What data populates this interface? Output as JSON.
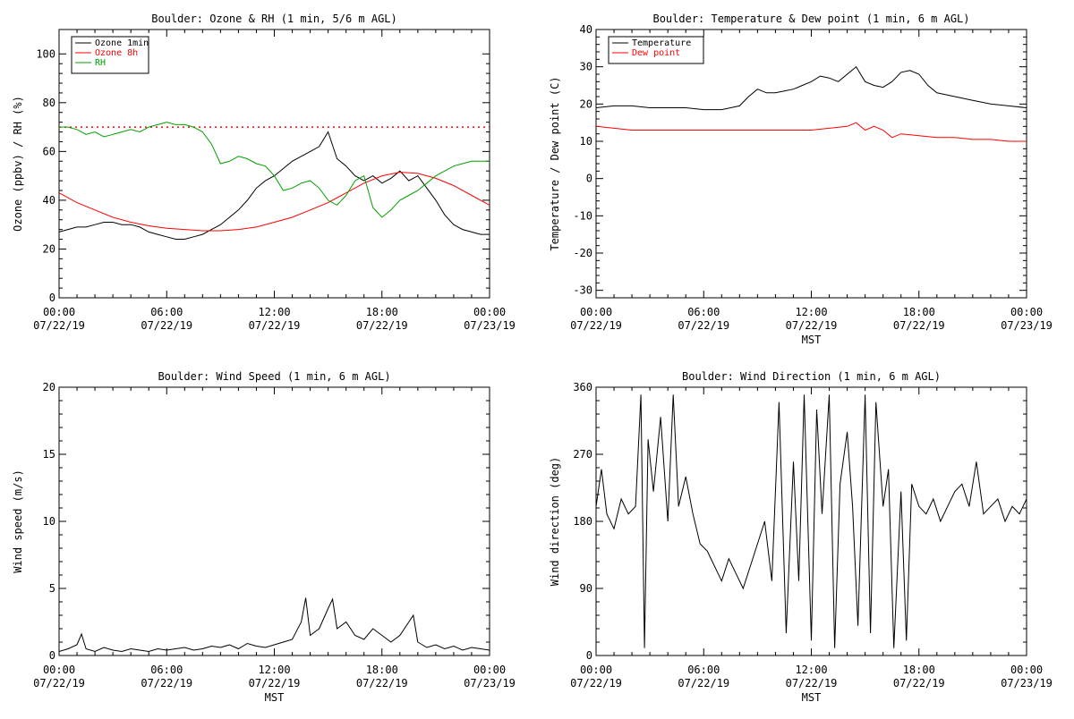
{
  "chart_data": [
    {
      "type": "line",
      "title": "Boulder: Ozone & RH (1 min, 5/6 m AGL)",
      "xlabel": "",
      "ylabel": "Ozone (ppbv) / RH (%)",
      "x_range": [
        0,
        24
      ],
      "ylim": [
        0,
        110
      ],
      "y_ticks": [
        0,
        20,
        40,
        60,
        80,
        100
      ],
      "x_tick_labels": [
        {
          "x": 0,
          "time": "00:00",
          "date": "07/22/19"
        },
        {
          "x": 6,
          "time": "06:00",
          "date": "07/22/19"
        },
        {
          "x": 12,
          "time": "12:00",
          "date": "07/22/19"
        },
        {
          "x": 18,
          "time": "18:00",
          "date": "07/22/19"
        },
        {
          "x": 24,
          "time": "00:00",
          "date": "07/23/19"
        }
      ],
      "grid": false,
      "legend": "top-left",
      "reference_line": {
        "y": 70,
        "color": "#ff0000",
        "style": "dotted"
      },
      "series": [
        {
          "name": "Ozone 1min",
          "color": "#000000",
          "x": [
            0,
            0.5,
            1,
            1.5,
            2,
            2.5,
            3,
            3.5,
            4,
            4.5,
            5,
            5.5,
            6,
            6.5,
            7,
            7.5,
            8,
            8.5,
            9,
            9.5,
            10,
            10.5,
            11,
            11.5,
            12,
            12.5,
            13,
            13.5,
            14,
            14.5,
            15,
            15.5,
            16,
            16.5,
            17,
            17.5,
            18,
            18.5,
            19,
            19.5,
            20,
            20.5,
            21,
            21.5,
            22,
            22.5,
            23,
            23.5,
            24
          ],
          "y": [
            27,
            28,
            29,
            29,
            30,
            31,
            31,
            30,
            30,
            29,
            27,
            26,
            25,
            24,
            24,
            25,
            26,
            28,
            30,
            33,
            36,
            40,
            45,
            48,
            50,
            53,
            56,
            58,
            60,
            62,
            68,
            57,
            54,
            50,
            48,
            50,
            47,
            49,
            52,
            48,
            50,
            45,
            40,
            34,
            30,
            28,
            27,
            26,
            26
          ]
        },
        {
          "name": "Ozone 8h",
          "color": "#ff0000",
          "x": [
            0,
            1,
            2,
            3,
            4,
            5,
            6,
            7,
            8,
            9,
            10,
            11,
            12,
            13,
            14,
            15,
            16,
            17,
            18,
            19,
            20,
            21,
            22,
            23,
            24
          ],
          "y": [
            43,
            39,
            36,
            33,
            31,
            29.5,
            28.5,
            28,
            27.5,
            27.5,
            28,
            29,
            31,
            33,
            36,
            39,
            43,
            47,
            50,
            51.5,
            51,
            49,
            46,
            42,
            38
          ]
        },
        {
          "name": "RH",
          "color": "#00a000",
          "x": [
            0,
            0.5,
            1,
            1.5,
            2,
            2.5,
            3,
            3.5,
            4,
            4.5,
            5,
            5.5,
            6,
            6.5,
            7,
            7.5,
            8,
            8.5,
            9,
            9.5,
            10,
            10.5,
            11,
            11.5,
            12,
            12.5,
            13,
            13.5,
            14,
            14.5,
            15,
            15.5,
            16,
            16.5,
            17,
            17.5,
            18,
            18.5,
            19,
            19.5,
            20,
            20.5,
            21,
            21.5,
            22,
            22.5,
            23,
            23.5,
            24
          ],
          "y": [
            70,
            70,
            69,
            67,
            68,
            66,
            67,
            68,
            69,
            68,
            70,
            71,
            72,
            71,
            71,
            70,
            68,
            63,
            55,
            56,
            58,
            57,
            55,
            54,
            50,
            44,
            45,
            47,
            48,
            45,
            40,
            38,
            42,
            48,
            50,
            37,
            33,
            36,
            40,
            42,
            44,
            47,
            50,
            52,
            54,
            55,
            56,
            56,
            56
          ]
        }
      ]
    },
    {
      "type": "line",
      "title": "Boulder: Temperature & Dew point (1 min, 6 m AGL)",
      "xlabel": "MST",
      "ylabel": "Temperature / Dew point (C)",
      "x_range": [
        0,
        24
      ],
      "ylim": [
        -32,
        40
      ],
      "y_ticks": [
        -30,
        -20,
        -10,
        0,
        10,
        20,
        30,
        40
      ],
      "x_tick_labels": [
        {
          "x": 0,
          "time": "00:00",
          "date": "07/22/19"
        },
        {
          "x": 6,
          "time": "06:00",
          "date": "07/22/19"
        },
        {
          "x": 12,
          "time": "12:00",
          "date": "07/22/19"
        },
        {
          "x": 18,
          "time": "18:00",
          "date": "07/22/19"
        },
        {
          "x": 24,
          "time": "00:00",
          "date": "07/23/19"
        }
      ],
      "grid": false,
      "legend": "top-left",
      "series": [
        {
          "name": "Temperature",
          "color": "#000000",
          "x": [
            0,
            1,
            2,
            3,
            4,
            5,
            6,
            7,
            8,
            8.5,
            9,
            9.5,
            10,
            10.5,
            11,
            11.5,
            12,
            12.5,
            13,
            13.5,
            14,
            14.5,
            15,
            15.5,
            16,
            16.5,
            17,
            17.5,
            18,
            18.5,
            19,
            20,
            21,
            22,
            23,
            24
          ],
          "y": [
            19,
            19.5,
            19.5,
            19,
            19,
            19,
            18.5,
            18.5,
            19.5,
            22,
            24,
            23,
            23,
            23.5,
            24,
            25,
            26,
            27.5,
            27,
            26,
            28,
            30,
            26,
            25,
            24.5,
            26,
            28.5,
            29,
            28,
            25,
            23,
            22,
            21,
            20,
            19.5,
            19
          ]
        },
        {
          "name": "Dew point",
          "color": "#ff0000",
          "x": [
            0,
            1,
            2,
            3,
            4,
            5,
            6,
            7,
            8,
            9,
            10,
            11,
            12,
            13,
            14,
            14.5,
            15,
            15.5,
            16,
            16.5,
            17,
            18,
            19,
            20,
            21,
            22,
            23,
            24
          ],
          "y": [
            14,
            13.5,
            13,
            13,
            13,
            13,
            13,
            13,
            13,
            13,
            13,
            13,
            13,
            13.5,
            14,
            15,
            13,
            14,
            13,
            11,
            12,
            11.5,
            11,
            11,
            10.5,
            10.5,
            10,
            10
          ]
        }
      ]
    },
    {
      "type": "line",
      "title": "Boulder: Wind Speed (1 min, 6 m AGL)",
      "xlabel": "MST",
      "ylabel": "Wind speed (m/s)",
      "x_range": [
        0,
        24
      ],
      "ylim": [
        0,
        20
      ],
      "y_ticks": [
        0,
        5,
        10,
        15,
        20
      ],
      "x_tick_labels": [
        {
          "x": 0,
          "time": "00:00",
          "date": "07/22/19"
        },
        {
          "x": 6,
          "time": "06:00",
          "date": "07/22/19"
        },
        {
          "x": 12,
          "time": "12:00",
          "date": "07/22/19"
        },
        {
          "x": 18,
          "time": "18:00",
          "date": "07/22/19"
        },
        {
          "x": 24,
          "time": "00:00",
          "date": "07/23/19"
        }
      ],
      "grid": false,
      "series": [
        {
          "color": "#000000",
          "x": [
            0,
            0.5,
            1,
            1.25,
            1.5,
            2,
            2.5,
            3,
            3.5,
            4,
            4.5,
            5,
            5.5,
            6,
            6.5,
            7,
            7.5,
            8,
            8.5,
            9,
            9.5,
            10,
            10.5,
            11,
            11.5,
            12,
            12.5,
            13,
            13.5,
            13.75,
            14,
            14.5,
            15,
            15.25,
            15.5,
            16,
            16.5,
            17,
            17.5,
            18,
            18.5,
            19,
            19.5,
            19.75,
            20,
            20.5,
            21,
            21.5,
            22,
            22.5,
            23,
            23.5,
            24
          ],
          "y": [
            0.3,
            0.5,
            0.8,
            1.6,
            0.5,
            0.3,
            0.6,
            0.4,
            0.3,
            0.5,
            0.4,
            0.3,
            0.5,
            0.4,
            0.5,
            0.6,
            0.4,
            0.5,
            0.7,
            0.6,
            0.8,
            0.5,
            0.9,
            0.7,
            0.6,
            0.8,
            1.0,
            1.2,
            2.5,
            4.3,
            1.5,
            2.0,
            3.5,
            4.2,
            2.0,
            2.5,
            1.5,
            1.2,
            2.0,
            1.5,
            1.0,
            1.5,
            2.5,
            3.0,
            1.0,
            0.6,
            0.8,
            0.5,
            0.7,
            0.4,
            0.6,
            0.5,
            0.4
          ]
        }
      ]
    },
    {
      "type": "line",
      "title": "Boulder: Wind Direction (1 min, 6 m AGL)",
      "xlabel": "MST",
      "ylabel": "Wind direction (deg)",
      "x_range": [
        0,
        24
      ],
      "ylim": [
        0,
        360
      ],
      "y_ticks": [
        0,
        90,
        180,
        270,
        360
      ],
      "x_tick_labels": [
        {
          "x": 0,
          "time": "00:00",
          "date": "07/22/19"
        },
        {
          "x": 6,
          "time": "06:00",
          "date": "07/22/19"
        },
        {
          "x": 12,
          "time": "12:00",
          "date": "07/22/19"
        },
        {
          "x": 18,
          "time": "18:00",
          "date": "07/22/19"
        },
        {
          "x": 24,
          "time": "00:00",
          "date": "07/23/19"
        }
      ],
      "grid": false,
      "series": [
        {
          "color": "#000000",
          "x": [
            0,
            0.3,
            0.6,
            1,
            1.4,
            1.8,
            2.2,
            2.5,
            2.7,
            2.9,
            3.2,
            3.6,
            4,
            4.3,
            4.6,
            5,
            5.4,
            5.8,
            6.2,
            6.6,
            7,
            7.4,
            7.8,
            8.2,
            8.6,
            9,
            9.4,
            9.8,
            10.2,
            10.6,
            11,
            11.3,
            11.6,
            12,
            12.3,
            12.6,
            13,
            13.3,
            13.6,
            14,
            14.3,
            14.6,
            15,
            15.3,
            15.6,
            16,
            16.3,
            16.6,
            17,
            17.3,
            17.6,
            18,
            18.4,
            18.8,
            19.2,
            19.6,
            20,
            20.4,
            20.8,
            21.2,
            21.6,
            22,
            22.4,
            22.8,
            23.2,
            23.6,
            24
          ],
          "y": [
            200,
            250,
            190,
            170,
            210,
            190,
            200,
            350,
            10,
            290,
            220,
            320,
            180,
            350,
            200,
            240,
            190,
            150,
            140,
            120,
            100,
            130,
            110,
            90,
            120,
            150,
            180,
            100,
            340,
            30,
            260,
            100,
            350,
            20,
            330,
            190,
            350,
            10,
            230,
            300,
            200,
            40,
            350,
            30,
            340,
            200,
            250,
            10,
            220,
            20,
            230,
            200,
            190,
            210,
            180,
            200,
            220,
            230,
            200,
            260,
            190,
            200,
            210,
            180,
            200,
            190,
            210
          ]
        }
      ]
    }
  ]
}
